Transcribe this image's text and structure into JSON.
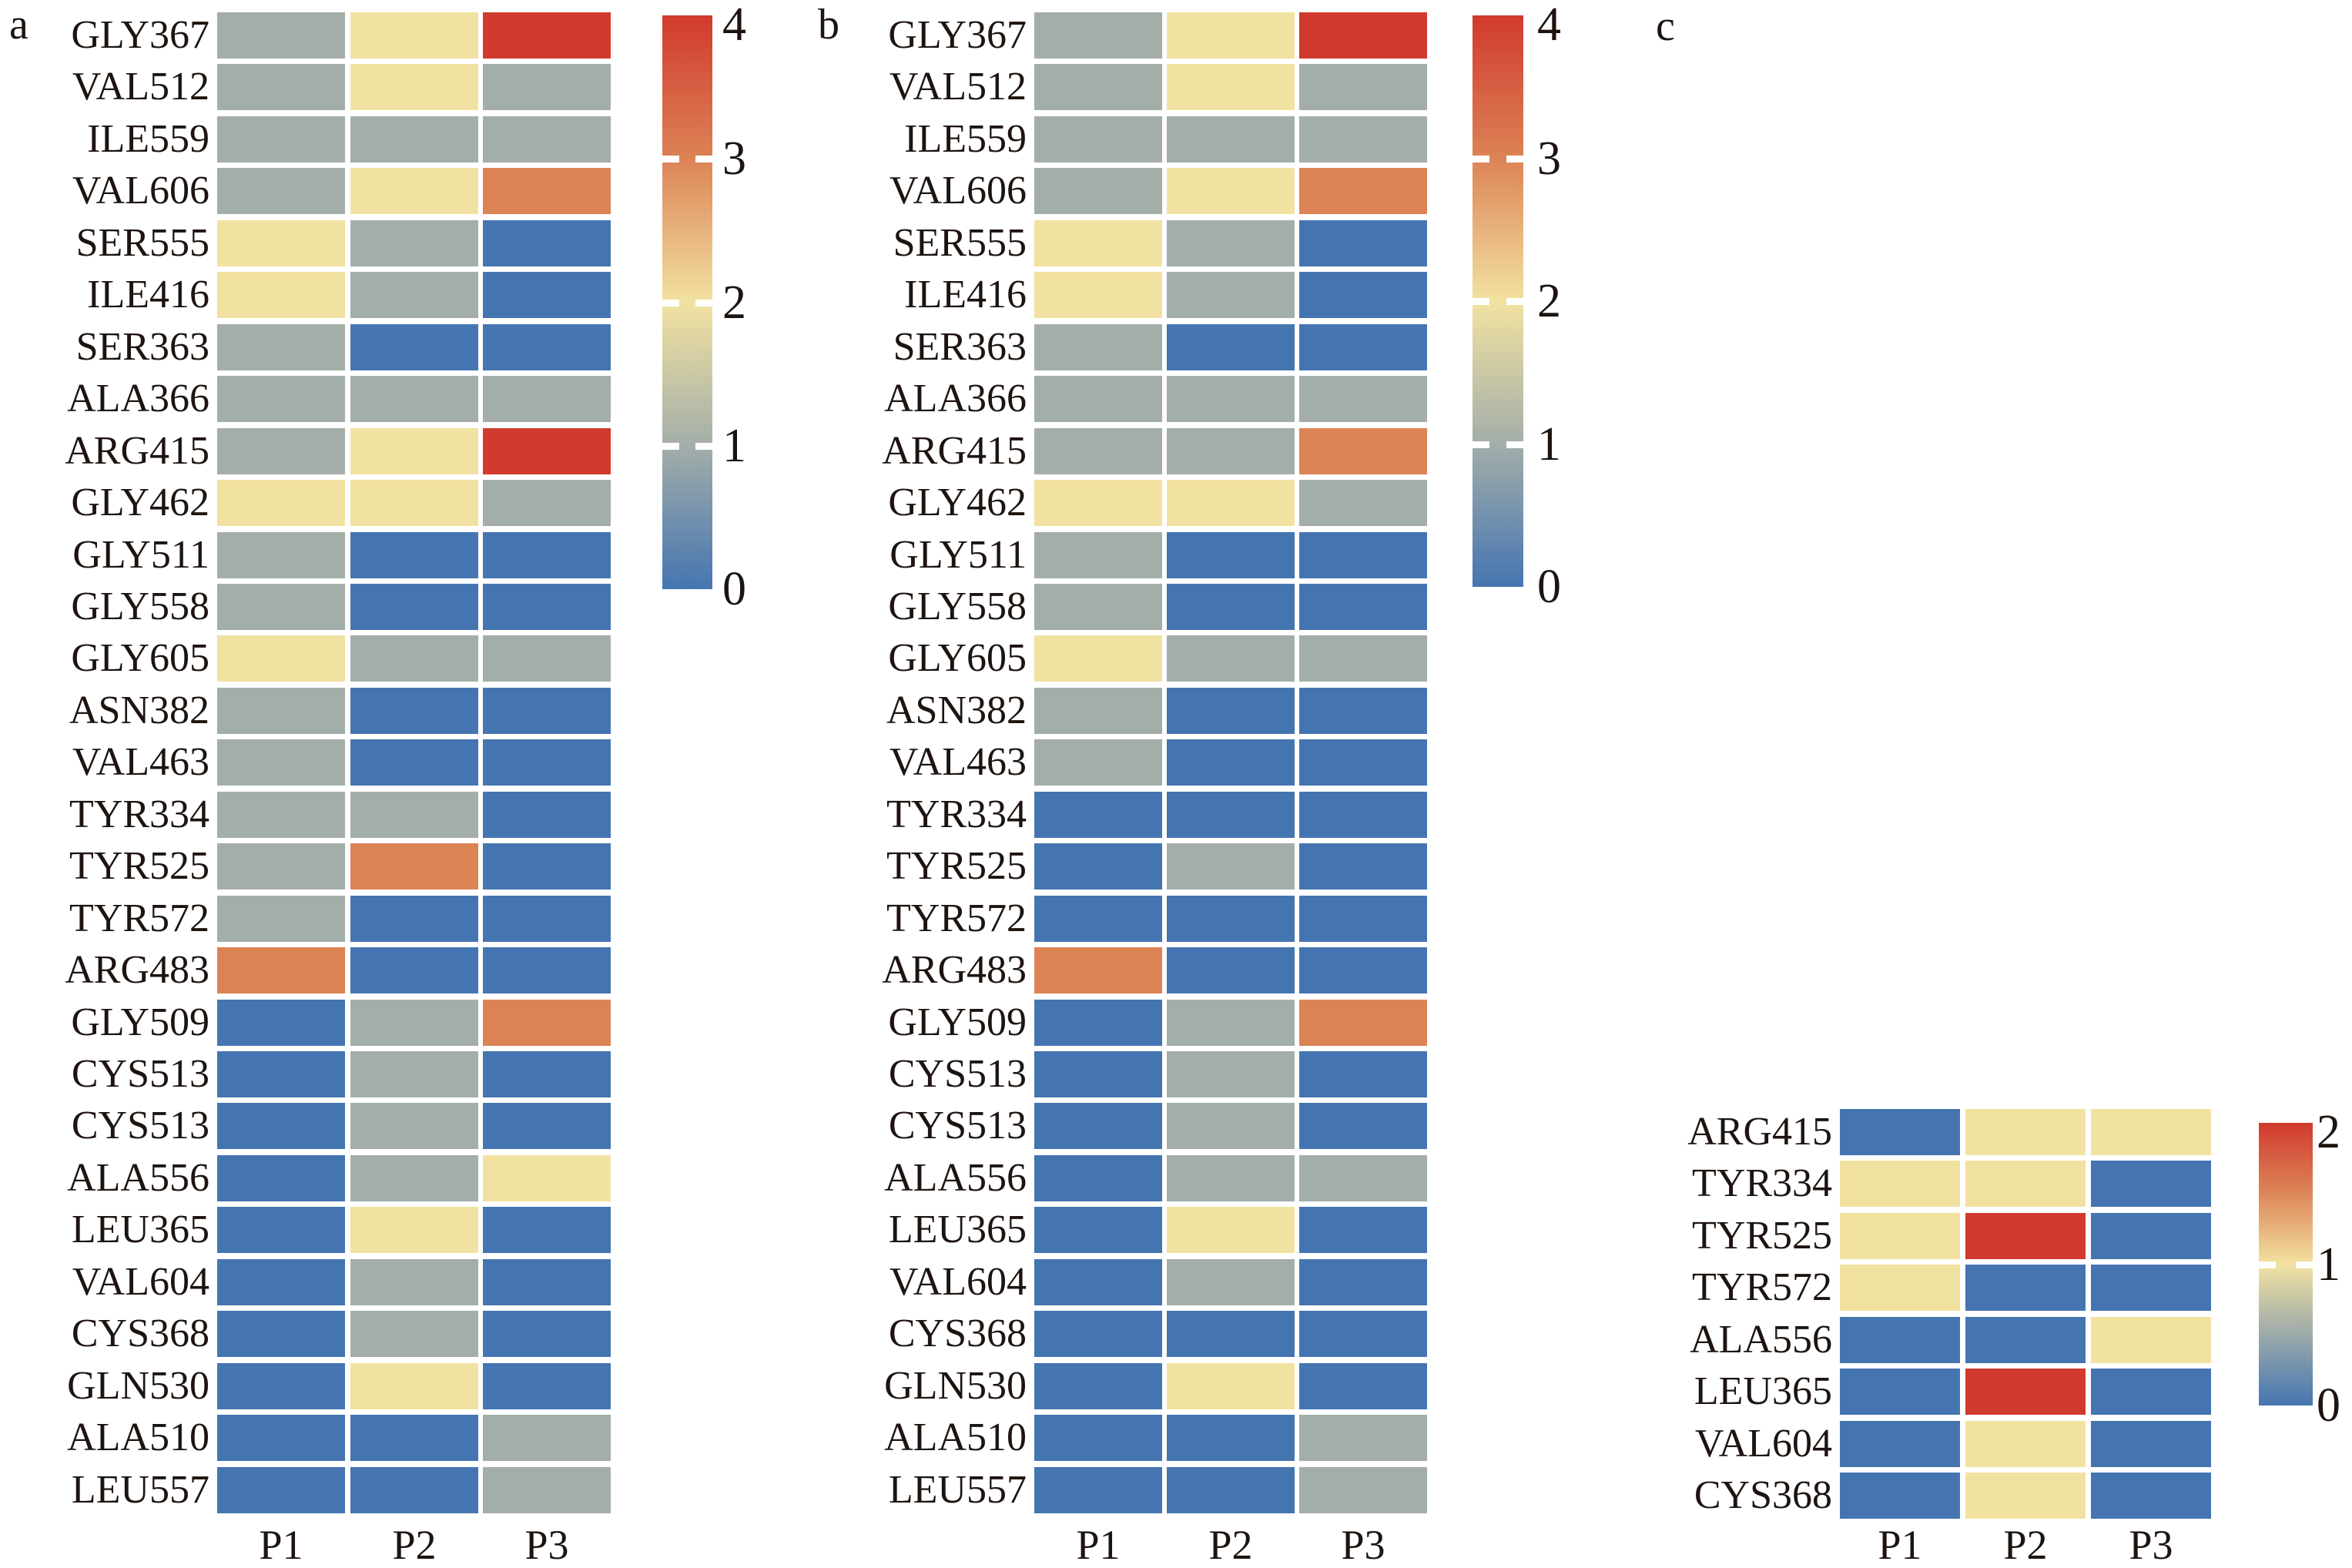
{
  "page": {
    "background": "#ffffff"
  },
  "chart_data": [
    {
      "type": "heatmap",
      "panel_label": "a",
      "columns": [
        "P1",
        "P2",
        "P3"
      ],
      "rows": [
        "GLY367",
        "VAL512",
        "ILE559",
        "VAL606",
        "SER555",
        "ILE416",
        "SER363",
        "ALA366",
        "ARG415",
        "GLY462",
        "GLY511",
        "GLY558",
        "GLY605",
        "ASN382",
        "VAL463",
        "TYR334",
        "TYR525",
        "TYR572",
        "ARG483",
        "GLY509",
        "CYS513",
        "CYS513",
        "ALA556",
        "LEU365",
        "VAL604",
        "CYS368",
        "GLN530",
        "ALA510",
        "LEU557"
      ],
      "values": [
        [
          1,
          2,
          4
        ],
        [
          1,
          2,
          1
        ],
        [
          1,
          1,
          1
        ],
        [
          1,
          2,
          3
        ],
        [
          2,
          1,
          0
        ],
        [
          2,
          1,
          0
        ],
        [
          1,
          0,
          0
        ],
        [
          1,
          1,
          1
        ],
        [
          1,
          2,
          4
        ],
        [
          2,
          2,
          1
        ],
        [
          1,
          0,
          0
        ],
        [
          1,
          0,
          0
        ],
        [
          2,
          1,
          1
        ],
        [
          1,
          0,
          0
        ],
        [
          1,
          0,
          0
        ],
        [
          1,
          1,
          0
        ],
        [
          1,
          3,
          0
        ],
        [
          1,
          0,
          0
        ],
        [
          3,
          0,
          0
        ],
        [
          0,
          1,
          3
        ],
        [
          0,
          1,
          0
        ],
        [
          0,
          1,
          0
        ],
        [
          0,
          1,
          2
        ],
        [
          0,
          2,
          0
        ],
        [
          0,
          1,
          0
        ],
        [
          0,
          1,
          0
        ],
        [
          0,
          2,
          0
        ],
        [
          0,
          0,
          1
        ],
        [
          0,
          0,
          1
        ]
      ],
      "value_range": [
        0,
        4
      ],
      "colorbar_ticks": [
        "4",
        "3",
        "2",
        "1",
        "0"
      ],
      "palette": {
        "0": "#4575b1",
        "1": "#a3aea9",
        "2": "#f2e2a1",
        "3": "#dc8356",
        "4": "#d13a2e"
      },
      "gradient_stops": [
        {
          "pos": 0,
          "color": "#4575b1"
        },
        {
          "pos": 25,
          "color": "#a3aea9"
        },
        {
          "pos": 50,
          "color": "#f2e2a1"
        },
        {
          "pos": 75,
          "color": "#dc8356"
        },
        {
          "pos": 100,
          "color": "#d13a2e"
        }
      ],
      "legend_position": "right",
      "grid": "white-gaps"
    },
    {
      "type": "heatmap",
      "panel_label": "b",
      "columns": [
        "P1",
        "P2",
        "P3"
      ],
      "rows": [
        "GLY367",
        "VAL512",
        "ILE559",
        "VAL606",
        "SER555",
        "ILE416",
        "SER363",
        "ALA366",
        "ARG415",
        "GLY462",
        "GLY511",
        "GLY558",
        "GLY605",
        "ASN382",
        "VAL463",
        "TYR334",
        "TYR525",
        "TYR572",
        "ARG483",
        "GLY509",
        "CYS513",
        "CYS513",
        "ALA556",
        "LEU365",
        "VAL604",
        "CYS368",
        "GLN530",
        "ALA510",
        "LEU557"
      ],
      "values": [
        [
          1,
          2,
          4
        ],
        [
          1,
          2,
          1
        ],
        [
          1,
          1,
          1
        ],
        [
          1,
          2,
          3
        ],
        [
          2,
          1,
          0
        ],
        [
          2,
          1,
          0
        ],
        [
          1,
          0,
          0
        ],
        [
          1,
          1,
          1
        ],
        [
          1,
          1,
          3
        ],
        [
          2,
          2,
          1
        ],
        [
          1,
          0,
          0
        ],
        [
          1,
          0,
          0
        ],
        [
          2,
          1,
          1
        ],
        [
          1,
          0,
          0
        ],
        [
          1,
          0,
          0
        ],
        [
          0,
          0,
          0
        ],
        [
          0,
          1,
          0
        ],
        [
          0,
          0,
          0
        ],
        [
          3,
          0,
          0
        ],
        [
          0,
          1,
          3
        ],
        [
          0,
          1,
          0
        ],
        [
          0,
          1,
          0
        ],
        [
          0,
          1,
          1
        ],
        [
          0,
          2,
          0
        ],
        [
          0,
          1,
          0
        ],
        [
          0,
          0,
          0
        ],
        [
          0,
          2,
          0
        ],
        [
          0,
          0,
          1
        ],
        [
          0,
          0,
          1
        ]
      ],
      "value_range": [
        0,
        4
      ],
      "colorbar_ticks": [
        "4",
        "3",
        "2",
        "1",
        "0"
      ],
      "palette": {
        "0": "#4575b1",
        "1": "#a3aea9",
        "2": "#f2e2a1",
        "3": "#dc8356",
        "4": "#d13a2e"
      },
      "gradient_stops": [
        {
          "pos": 0,
          "color": "#4575b1"
        },
        {
          "pos": 25,
          "color": "#a3aea9"
        },
        {
          "pos": 50,
          "color": "#f2e2a1"
        },
        {
          "pos": 75,
          "color": "#dc8356"
        },
        {
          "pos": 100,
          "color": "#d13a2e"
        }
      ],
      "legend_position": "right",
      "grid": "white-gaps"
    },
    {
      "type": "heatmap",
      "panel_label": "c",
      "columns": [
        "P1",
        "P2",
        "P3"
      ],
      "rows": [
        "ARG415",
        "TYR334",
        "TYR525",
        "TYR572",
        "ALA556",
        "LEU365",
        "VAL604",
        "CYS368"
      ],
      "values": [
        [
          0,
          1,
          1
        ],
        [
          1,
          1,
          0
        ],
        [
          1,
          2,
          0
        ],
        [
          1,
          0,
          0
        ],
        [
          0,
          0,
          1
        ],
        [
          0,
          2,
          0
        ],
        [
          0,
          1,
          0
        ],
        [
          0,
          1,
          0
        ]
      ],
      "value_range": [
        0,
        2
      ],
      "colorbar_ticks": [
        "2",
        "1",
        "0"
      ],
      "palette": {
        "0": "#4575b1",
        "1": "#f2e2a1",
        "2": "#d13a2e"
      },
      "gradient_stops": [
        {
          "pos": 0,
          "color": "#4575b1"
        },
        {
          "pos": 27,
          "color": "#a3aea9"
        },
        {
          "pos": 50,
          "color": "#f2e2a1"
        },
        {
          "pos": 76,
          "color": "#dc8356"
        },
        {
          "pos": 100,
          "color": "#d13a2e"
        }
      ],
      "legend_position": "right",
      "grid": "white-gaps"
    }
  ]
}
